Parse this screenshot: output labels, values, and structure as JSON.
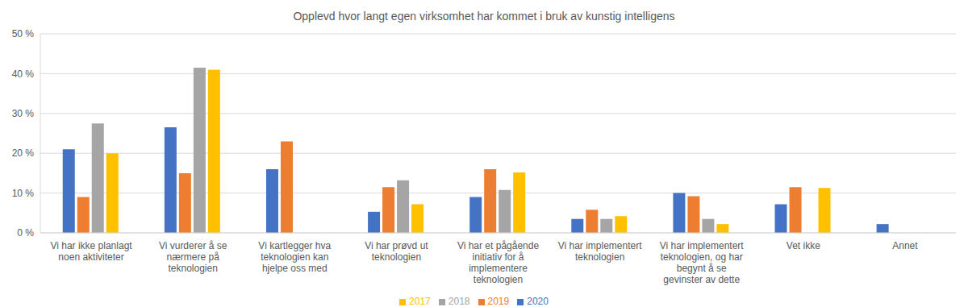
{
  "chart_data": {
    "type": "bar",
    "title": "Opplevd hvor langt egen virksomhet har kommet i bruk av kunstig intelligens",
    "categories": [
      "Vi har ikke planlagt noen aktiviteter",
      "Vi vurderer å se nærmere på teknologien",
      "Vi kartlegger hva teknologien kan hjelpe oss med",
      "Vi har prøvd ut teknologien",
      "Vi har et pågående initiativ for å implementere teknologien",
      "Vi har implementert teknologien",
      "Vi har implementert teknologien, og har begynt å se gevinster av dette",
      "Vet ikke",
      "Annet"
    ],
    "series": [
      {
        "name": "2020",
        "color": "#4472c4",
        "values": [
          21,
          26.5,
          16,
          5.3,
          9,
          3.5,
          10,
          7.2,
          2.2
        ]
      },
      {
        "name": "2019",
        "color": "#ed7d31",
        "values": [
          9,
          15,
          23,
          11.5,
          16,
          5.8,
          9.2,
          11.5,
          null
        ]
      },
      {
        "name": "2018",
        "color": "#a5a5a5",
        "values": [
          27.5,
          41.5,
          null,
          13.2,
          10.8,
          3.5,
          3.5,
          null,
          null
        ]
      },
      {
        "name": "2017",
        "color": "#ffc000",
        "values": [
          20,
          41,
          null,
          7.2,
          15.2,
          4.2,
          2.2,
          11.3,
          null
        ]
      }
    ],
    "ylim": [
      0,
      50
    ],
    "yticks": [
      {
        "value": 0,
        "label": "0 %"
      },
      {
        "value": 10,
        "label": "10 %"
      },
      {
        "value": 20,
        "label": "20 %"
      },
      {
        "value": 30,
        "label": "30 %"
      },
      {
        "value": 40,
        "label": "40 %"
      },
      {
        "value": 50,
        "label": "50 %"
      }
    ],
    "grid": true,
    "legend": "bottom"
  }
}
